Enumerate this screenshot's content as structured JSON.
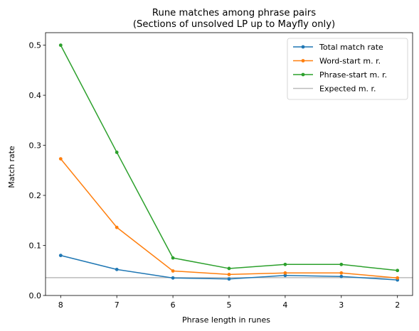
{
  "chart_data": {
    "type": "line",
    "title": "Rune matches among phrase pairs",
    "subtitle": "(Sections of unsolved LP up to Mayfly only)",
    "xlabel": "Phrase length in runes",
    "ylabel": "Match rate",
    "x": [
      8,
      7,
      6,
      5,
      4,
      3,
      2
    ],
    "x_reversed": true,
    "xlim": [
      8.27,
      1.73
    ],
    "ylim": [
      0,
      0.525
    ],
    "xticks": [
      8,
      7,
      6,
      5,
      4,
      3,
      2
    ],
    "yticks": [
      0.0,
      0.1,
      0.2,
      0.3,
      0.4,
      0.5
    ],
    "ytick_labels": [
      "0.0",
      "0.1",
      "0.2",
      "0.3",
      "0.4",
      "0.5"
    ],
    "grid": false,
    "legend_position": "top-right",
    "series": [
      {
        "name": "Total match rate",
        "color": "#1f77b4",
        "values": [
          0.08,
          0.052,
          0.035,
          0.033,
          0.04,
          0.038,
          0.031
        ]
      },
      {
        "name": "Word-start m. r.",
        "color": "#ff7f0e",
        "values": [
          0.273,
          0.136,
          0.049,
          0.042,
          0.045,
          0.045,
          0.035
        ]
      },
      {
        "name": "Phrase-start m. r.",
        "color": "#2ca02c",
        "values": [
          0.5,
          0.286,
          0.075,
          0.054,
          0.062,
          0.062,
          0.05
        ]
      }
    ],
    "reference_line": {
      "name": "Expected m. r.",
      "color": "#bbbbbb",
      "value": 0.0357
    }
  }
}
